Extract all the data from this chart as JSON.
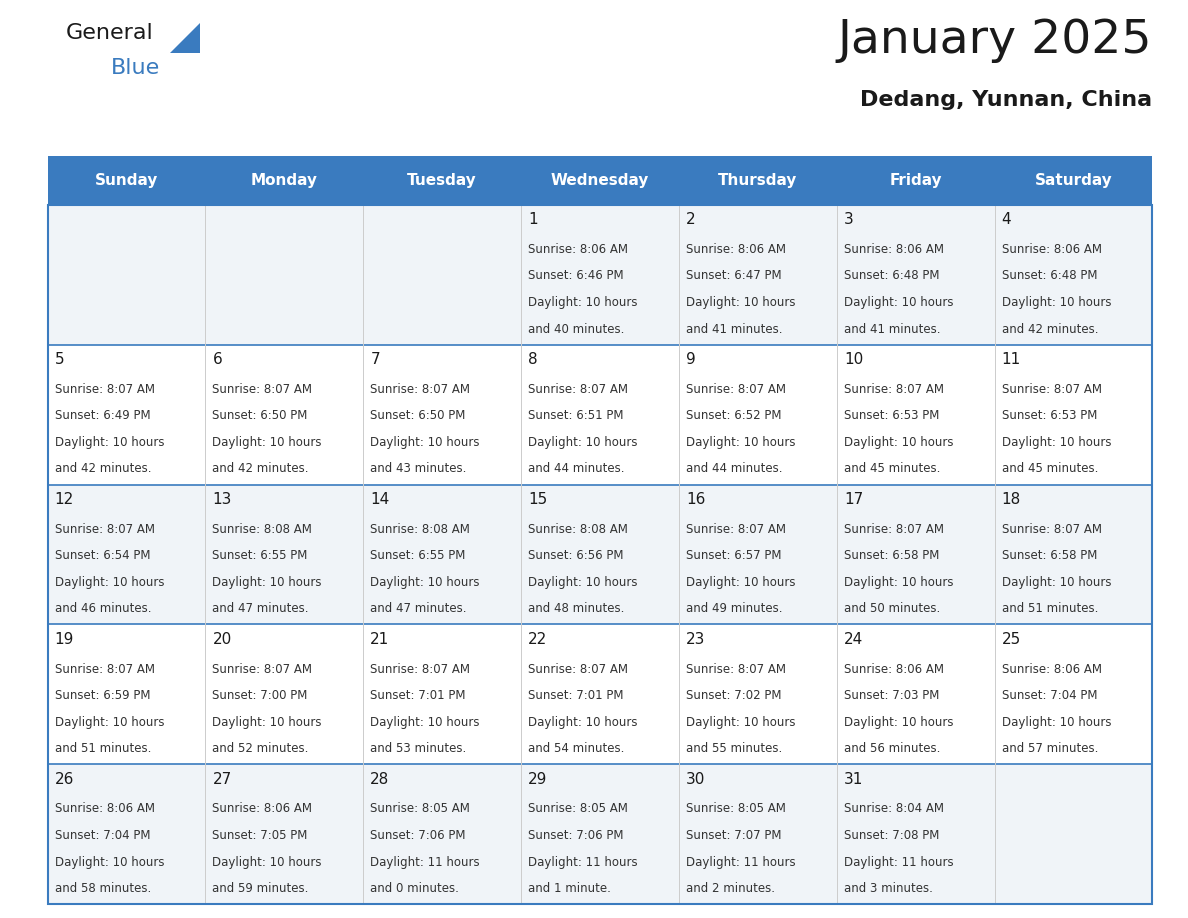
{
  "title": "January 2025",
  "subtitle": "Dedang, Yunnan, China",
  "header_color": "#3a7bbf",
  "header_text_color": "#ffffff",
  "cell_bg_light": "#f0f4f8",
  "cell_bg_white": "#ffffff",
  "border_color": "#3a7bbf",
  "inner_line_color": "#cccccc",
  "day_names": [
    "Sunday",
    "Monday",
    "Tuesday",
    "Wednesday",
    "Thursday",
    "Friday",
    "Saturday"
  ],
  "days": [
    {
      "day": 1,
      "col": 3,
      "row": 0,
      "sunrise": "8:06 AM",
      "sunset": "6:46 PM",
      "daylight_h": "10 hours",
      "daylight_m": "and 40 minutes."
    },
    {
      "day": 2,
      "col": 4,
      "row": 0,
      "sunrise": "8:06 AM",
      "sunset": "6:47 PM",
      "daylight_h": "10 hours",
      "daylight_m": "and 41 minutes."
    },
    {
      "day": 3,
      "col": 5,
      "row": 0,
      "sunrise": "8:06 AM",
      "sunset": "6:48 PM",
      "daylight_h": "10 hours",
      "daylight_m": "and 41 minutes."
    },
    {
      "day": 4,
      "col": 6,
      "row": 0,
      "sunrise": "8:06 AM",
      "sunset": "6:48 PM",
      "daylight_h": "10 hours",
      "daylight_m": "and 42 minutes."
    },
    {
      "day": 5,
      "col": 0,
      "row": 1,
      "sunrise": "8:07 AM",
      "sunset": "6:49 PM",
      "daylight_h": "10 hours",
      "daylight_m": "and 42 minutes."
    },
    {
      "day": 6,
      "col": 1,
      "row": 1,
      "sunrise": "8:07 AM",
      "sunset": "6:50 PM",
      "daylight_h": "10 hours",
      "daylight_m": "and 42 minutes."
    },
    {
      "day": 7,
      "col": 2,
      "row": 1,
      "sunrise": "8:07 AM",
      "sunset": "6:50 PM",
      "daylight_h": "10 hours",
      "daylight_m": "and 43 minutes."
    },
    {
      "day": 8,
      "col": 3,
      "row": 1,
      "sunrise": "8:07 AM",
      "sunset": "6:51 PM",
      "daylight_h": "10 hours",
      "daylight_m": "and 44 minutes."
    },
    {
      "day": 9,
      "col": 4,
      "row": 1,
      "sunrise": "8:07 AM",
      "sunset": "6:52 PM",
      "daylight_h": "10 hours",
      "daylight_m": "and 44 minutes."
    },
    {
      "day": 10,
      "col": 5,
      "row": 1,
      "sunrise": "8:07 AM",
      "sunset": "6:53 PM",
      "daylight_h": "10 hours",
      "daylight_m": "and 45 minutes."
    },
    {
      "day": 11,
      "col": 6,
      "row": 1,
      "sunrise": "8:07 AM",
      "sunset": "6:53 PM",
      "daylight_h": "10 hours",
      "daylight_m": "and 45 minutes."
    },
    {
      "day": 12,
      "col": 0,
      "row": 2,
      "sunrise": "8:07 AM",
      "sunset": "6:54 PM",
      "daylight_h": "10 hours",
      "daylight_m": "and 46 minutes."
    },
    {
      "day": 13,
      "col": 1,
      "row": 2,
      "sunrise": "8:08 AM",
      "sunset": "6:55 PM",
      "daylight_h": "10 hours",
      "daylight_m": "and 47 minutes."
    },
    {
      "day": 14,
      "col": 2,
      "row": 2,
      "sunrise": "8:08 AM",
      "sunset": "6:55 PM",
      "daylight_h": "10 hours",
      "daylight_m": "and 47 minutes."
    },
    {
      "day": 15,
      "col": 3,
      "row": 2,
      "sunrise": "8:08 AM",
      "sunset": "6:56 PM",
      "daylight_h": "10 hours",
      "daylight_m": "and 48 minutes."
    },
    {
      "day": 16,
      "col": 4,
      "row": 2,
      "sunrise": "8:07 AM",
      "sunset": "6:57 PM",
      "daylight_h": "10 hours",
      "daylight_m": "and 49 minutes."
    },
    {
      "day": 17,
      "col": 5,
      "row": 2,
      "sunrise": "8:07 AM",
      "sunset": "6:58 PM",
      "daylight_h": "10 hours",
      "daylight_m": "and 50 minutes."
    },
    {
      "day": 18,
      "col": 6,
      "row": 2,
      "sunrise": "8:07 AM",
      "sunset": "6:58 PM",
      "daylight_h": "10 hours",
      "daylight_m": "and 51 minutes."
    },
    {
      "day": 19,
      "col": 0,
      "row": 3,
      "sunrise": "8:07 AM",
      "sunset": "6:59 PM",
      "daylight_h": "10 hours",
      "daylight_m": "and 51 minutes."
    },
    {
      "day": 20,
      "col": 1,
      "row": 3,
      "sunrise": "8:07 AM",
      "sunset": "7:00 PM",
      "daylight_h": "10 hours",
      "daylight_m": "and 52 minutes."
    },
    {
      "day": 21,
      "col": 2,
      "row": 3,
      "sunrise": "8:07 AM",
      "sunset": "7:01 PM",
      "daylight_h": "10 hours",
      "daylight_m": "and 53 minutes."
    },
    {
      "day": 22,
      "col": 3,
      "row": 3,
      "sunrise": "8:07 AM",
      "sunset": "7:01 PM",
      "daylight_h": "10 hours",
      "daylight_m": "and 54 minutes."
    },
    {
      "day": 23,
      "col": 4,
      "row": 3,
      "sunrise": "8:07 AM",
      "sunset": "7:02 PM",
      "daylight_h": "10 hours",
      "daylight_m": "and 55 minutes."
    },
    {
      "day": 24,
      "col": 5,
      "row": 3,
      "sunrise": "8:06 AM",
      "sunset": "7:03 PM",
      "daylight_h": "10 hours",
      "daylight_m": "and 56 minutes."
    },
    {
      "day": 25,
      "col": 6,
      "row": 3,
      "sunrise": "8:06 AM",
      "sunset": "7:04 PM",
      "daylight_h": "10 hours",
      "daylight_m": "and 57 minutes."
    },
    {
      "day": 26,
      "col": 0,
      "row": 4,
      "sunrise": "8:06 AM",
      "sunset": "7:04 PM",
      "daylight_h": "10 hours",
      "daylight_m": "and 58 minutes."
    },
    {
      "day": 27,
      "col": 1,
      "row": 4,
      "sunrise": "8:06 AM",
      "sunset": "7:05 PM",
      "daylight_h": "10 hours",
      "daylight_m": "and 59 minutes."
    },
    {
      "day": 28,
      "col": 2,
      "row": 4,
      "sunrise": "8:05 AM",
      "sunset": "7:06 PM",
      "daylight_h": "11 hours",
      "daylight_m": "and 0 minutes."
    },
    {
      "day": 29,
      "col": 3,
      "row": 4,
      "sunrise": "8:05 AM",
      "sunset": "7:06 PM",
      "daylight_h": "11 hours",
      "daylight_m": "and 1 minute."
    },
    {
      "day": 30,
      "col": 4,
      "row": 4,
      "sunrise": "8:05 AM",
      "sunset": "7:07 PM",
      "daylight_h": "11 hours",
      "daylight_m": "and 2 minutes."
    },
    {
      "day": 31,
      "col": 5,
      "row": 4,
      "sunrise": "8:04 AM",
      "sunset": "7:08 PM",
      "daylight_h": "11 hours",
      "daylight_m": "and 3 minutes."
    }
  ],
  "num_rows": 5,
  "num_cols": 7,
  "fig_width": 11.88,
  "fig_height": 9.18,
  "title_fontsize": 34,
  "subtitle_fontsize": 16,
  "header_fontsize": 11,
  "daynum_fontsize": 11,
  "cell_text_fontsize": 8.5
}
